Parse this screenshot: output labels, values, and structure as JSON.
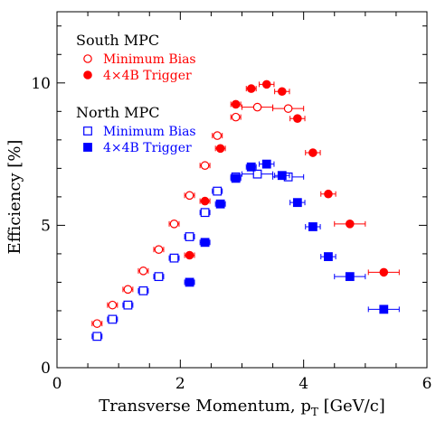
{
  "chart_data": {
    "type": "scatter",
    "xlabel": "Transverse Momentum, p",
    "xlabel_sub": "T",
    "xlabel_unit": " [GeV/c]",
    "ylabel": "Efficiency [%]",
    "xlim": [
      0,
      6
    ],
    "ylim": [
      0,
      12.5
    ],
    "x_ticks": [
      0,
      2,
      4,
      6
    ],
    "y_ticks": [
      0,
      5,
      10
    ],
    "x_tick_labels": [
      "0",
      "2",
      "4",
      "6"
    ],
    "y_tick_labels": [
      "0",
      "5",
      "10"
    ],
    "grid": false,
    "legend_groups": [
      {
        "title": "South MPC",
        "series": [
          0,
          1
        ]
      },
      {
        "title": "North MPC",
        "series": [
          2,
          3
        ]
      }
    ],
    "series": [
      {
        "name": "Minimum Bias",
        "group": "South MPC",
        "marker": "circle-open",
        "color": "#ff0000",
        "points": [
          {
            "x": 0.65,
            "y": 1.55,
            "xerr": 0.08
          },
          {
            "x": 0.9,
            "y": 2.2,
            "xerr": 0.08
          },
          {
            "x": 1.15,
            "y": 2.75,
            "xerr": 0.08
          },
          {
            "x": 1.4,
            "y": 3.4,
            "xerr": 0.08
          },
          {
            "x": 1.65,
            "y": 4.15,
            "xerr": 0.08
          },
          {
            "x": 1.9,
            "y": 5.05,
            "xerr": 0.08
          },
          {
            "x": 2.15,
            "y": 6.05,
            "xerr": 0.08
          },
          {
            "x": 2.4,
            "y": 7.1,
            "xerr": 0.08
          },
          {
            "x": 2.6,
            "y": 8.15,
            "xerr": 0.08
          },
          {
            "x": 2.9,
            "y": 8.8,
            "xerr": 0.08
          },
          {
            "x": 3.25,
            "y": 9.15,
            "xerr": 0.25
          },
          {
            "x": 3.75,
            "y": 9.1,
            "xerr": 0.25
          }
        ]
      },
      {
        "name": "4×4B Trigger",
        "group": "South MPC",
        "marker": "circle-filled",
        "color": "#ff0000",
        "points": [
          {
            "x": 2.15,
            "y": 3.95,
            "xerr": 0.08
          },
          {
            "x": 2.4,
            "y": 5.85,
            "xerr": 0.08
          },
          {
            "x": 2.65,
            "y": 7.7,
            "xerr": 0.08
          },
          {
            "x": 2.9,
            "y": 9.25,
            "xerr": 0.08
          },
          {
            "x": 3.15,
            "y": 9.8,
            "xerr": 0.08
          },
          {
            "x": 3.4,
            "y": 9.95,
            "xerr": 0.12
          },
          {
            "x": 3.65,
            "y": 9.7,
            "xerr": 0.12
          },
          {
            "x": 3.9,
            "y": 8.75,
            "xerr": 0.12
          },
          {
            "x": 4.15,
            "y": 7.55,
            "xerr": 0.12
          },
          {
            "x": 4.4,
            "y": 6.1,
            "xerr": 0.12
          },
          {
            "x": 4.75,
            "y": 5.05,
            "xerr": 0.25
          },
          {
            "x": 5.3,
            "y": 3.35,
            "xerr": 0.25
          }
        ]
      },
      {
        "name": "Minimum Bias",
        "group": "North MPC",
        "marker": "square-open",
        "color": "#0000ff",
        "points": [
          {
            "x": 0.65,
            "y": 1.1,
            "xerr": 0.08
          },
          {
            "x": 0.9,
            "y": 1.7,
            "xerr": 0.08
          },
          {
            "x": 1.15,
            "y": 2.2,
            "xerr": 0.08
          },
          {
            "x": 1.4,
            "y": 2.7,
            "xerr": 0.08
          },
          {
            "x": 1.65,
            "y": 3.2,
            "xerr": 0.08
          },
          {
            "x": 1.9,
            "y": 3.85,
            "xerr": 0.08
          },
          {
            "x": 2.15,
            "y": 4.6,
            "xerr": 0.08
          },
          {
            "x": 2.4,
            "y": 5.45,
            "xerr": 0.08
          },
          {
            "x": 2.6,
            "y": 6.2,
            "xerr": 0.08
          },
          {
            "x": 2.9,
            "y": 6.7,
            "xerr": 0.08
          },
          {
            "x": 3.25,
            "y": 6.8,
            "xerr": 0.25
          },
          {
            "x": 3.75,
            "y": 6.7,
            "xerr": 0.25
          }
        ]
      },
      {
        "name": "4×4B Trigger",
        "group": "North MPC",
        "marker": "square-filled",
        "color": "#0000ff",
        "points": [
          {
            "x": 2.15,
            "y": 3.0,
            "xerr": 0.08
          },
          {
            "x": 2.4,
            "y": 4.4,
            "xerr": 0.08
          },
          {
            "x": 2.65,
            "y": 5.75,
            "xerr": 0.08
          },
          {
            "x": 2.9,
            "y": 6.65,
            "xerr": 0.08
          },
          {
            "x": 3.15,
            "y": 7.05,
            "xerr": 0.08
          },
          {
            "x": 3.4,
            "y": 7.15,
            "xerr": 0.12
          },
          {
            "x": 3.65,
            "y": 6.75,
            "xerr": 0.12
          },
          {
            "x": 3.9,
            "y": 5.8,
            "xerr": 0.12
          },
          {
            "x": 4.15,
            "y": 4.95,
            "xerr": 0.12
          },
          {
            "x": 4.4,
            "y": 3.9,
            "xerr": 0.12
          },
          {
            "x": 4.75,
            "y": 3.2,
            "xerr": 0.25
          },
          {
            "x": 5.3,
            "y": 2.05,
            "xerr": 0.25
          }
        ]
      }
    ]
  }
}
